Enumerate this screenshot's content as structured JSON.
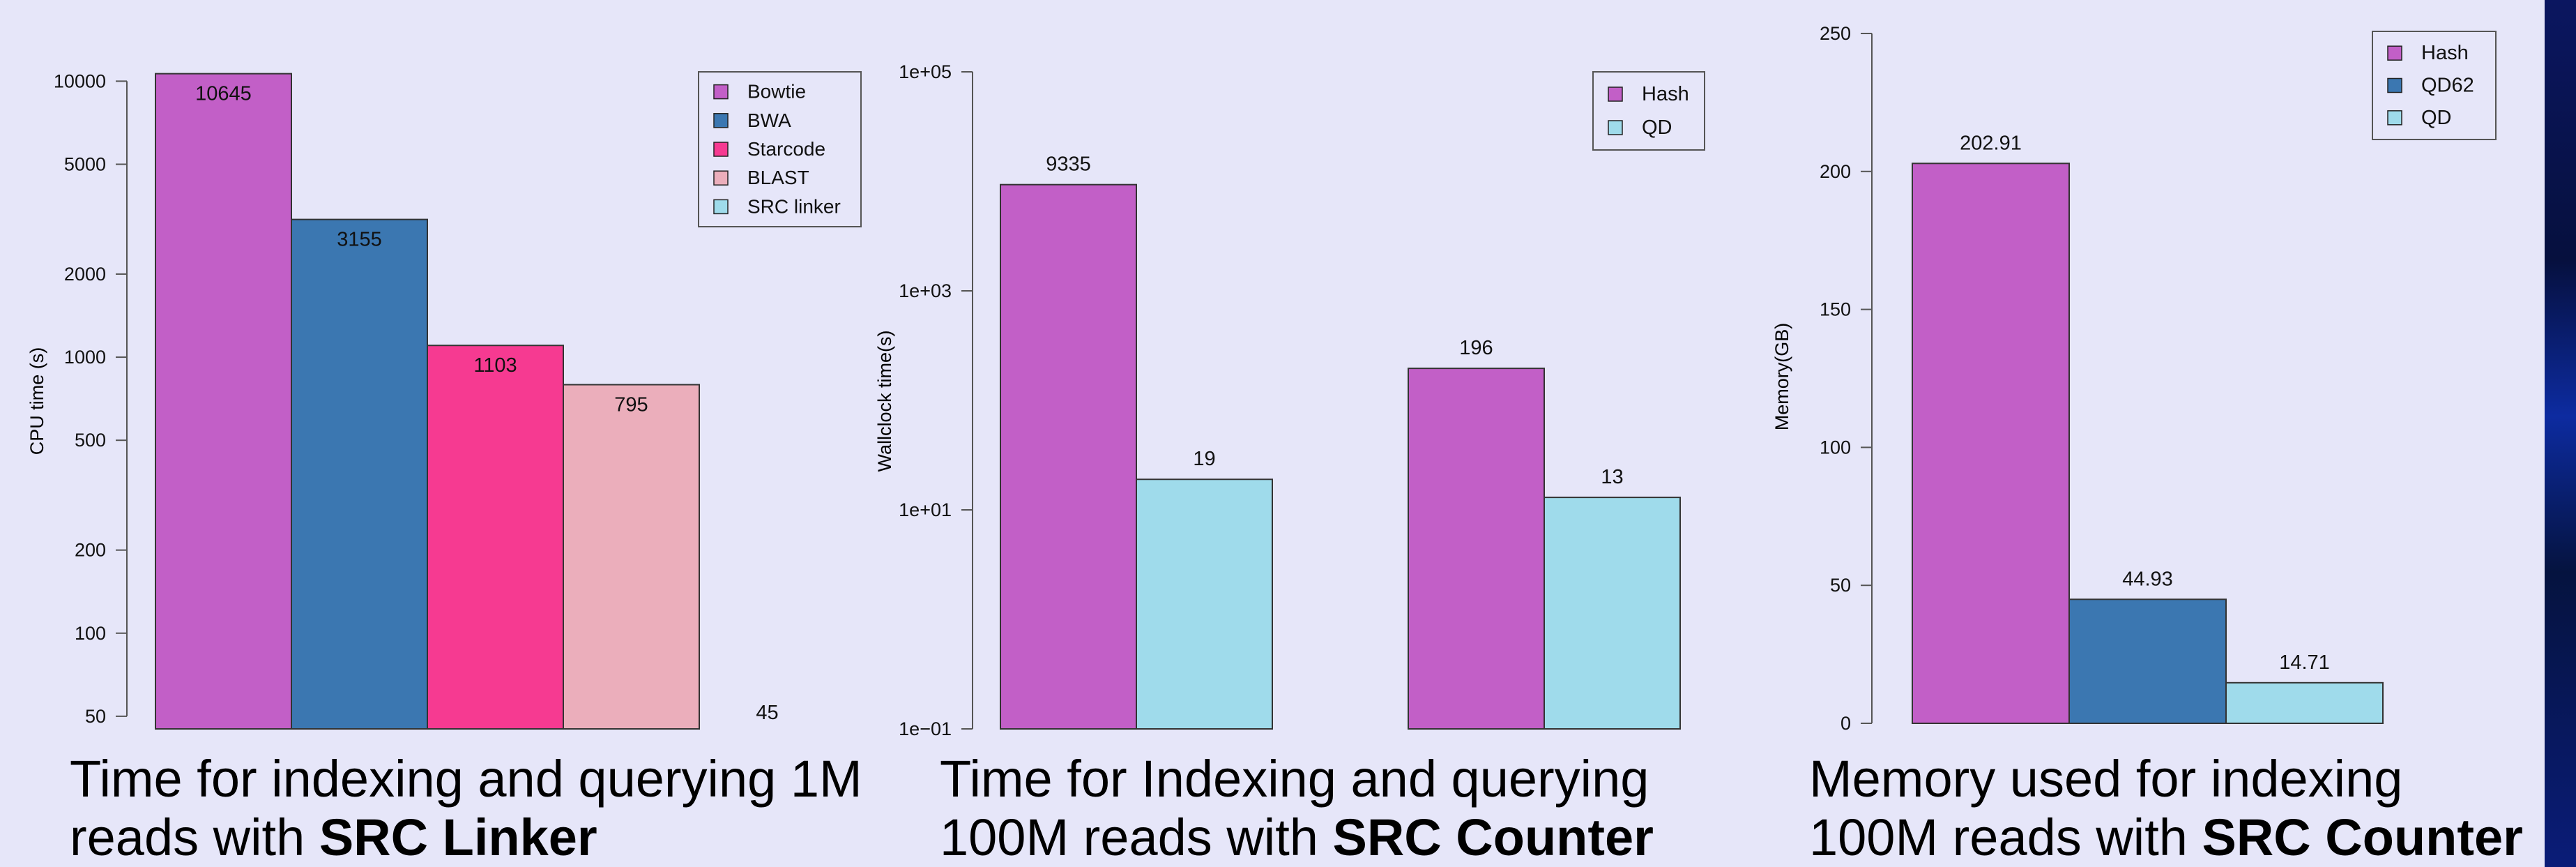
{
  "chart_data": [
    {
      "type": "bar",
      "scale": "log",
      "ylabel": "CPU time (s)",
      "ylim": [
        45,
        11000
      ],
      "yticks": [
        50,
        100,
        200,
        500,
        1000,
        2000,
        5000,
        10000
      ],
      "ytick_labels": [
        "50",
        "100",
        "200",
        "500",
        "1000",
        "2000",
        "5000",
        "10000"
      ],
      "legend_position": "top-right",
      "series": [
        {
          "name": "Bowtie",
          "value": 10645,
          "label": "10645",
          "color": "#c25fc7"
        },
        {
          "name": "BWA",
          "value": 3155,
          "label": "3155",
          "color": "#3b77b1"
        },
        {
          "name": "Starcode",
          "value": 1103,
          "label": "1103",
          "color": "#f63a91"
        },
        {
          "name": "BLAST",
          "value": 795,
          "label": "795",
          "color": "#ebaebb"
        },
        {
          "name": "SRC linker",
          "value": 45,
          "label": "45",
          "color": "#9fdbeb"
        }
      ],
      "caption_line1": "Time for indexing and querying 1M",
      "caption_line2_prefix": "reads with ",
      "caption_line2_bold": "SRC Linker"
    },
    {
      "type": "bar",
      "scale": "log",
      "ylabel": "Wallclock time(s)",
      "ylim": [
        0.1,
        100000
      ],
      "yticks": [
        0.1,
        10,
        1000,
        100000
      ],
      "ytick_labels": [
        "1e−01",
        "1e+01",
        "1e+03",
        "1e+05"
      ],
      "legend_position": "top-right",
      "legend": [
        {
          "name": "Hash",
          "color": "#c25fc7"
        },
        {
          "name": "QD",
          "color": "#9fdbeb"
        }
      ],
      "groups": [
        {
          "bars": [
            {
              "series": "Hash",
              "value": 9335,
              "label": "9335"
            },
            {
              "series": "QD",
              "value": 19,
              "label": "19"
            }
          ]
        },
        {
          "bars": [
            {
              "series": "Hash",
              "value": 196,
              "label": "196"
            },
            {
              "series": "QD",
              "value": 13,
              "label": "13"
            }
          ]
        }
      ],
      "caption_line1": "Time for Indexing and querying",
      "caption_line2_prefix": "100M reads with ",
      "caption_line2_bold": "SRC Counter"
    },
    {
      "type": "bar",
      "scale": "linear",
      "ylabel": "Memory(GB)",
      "ylim": [
        0,
        250
      ],
      "yticks": [
        0,
        50,
        100,
        150,
        200,
        250
      ],
      "ytick_labels": [
        "0",
        "50",
        "100",
        "150",
        "200",
        "250"
      ],
      "legend_position": "top-right",
      "series": [
        {
          "name": "Hash",
          "value": 202.91,
          "label": "202.91",
          "color": "#c25fc7"
        },
        {
          "name": "QD62",
          "value": 44.93,
          "label": "44.93",
          "color": "#3b77b1"
        },
        {
          "name": "QD",
          "value": 14.71,
          "label": "14.71",
          "color": "#9fdbeb"
        }
      ],
      "caption_line1": "Memory used for indexing",
      "caption_line2_prefix": "100M reads with ",
      "caption_line2_bold": "SRC Counter"
    }
  ]
}
